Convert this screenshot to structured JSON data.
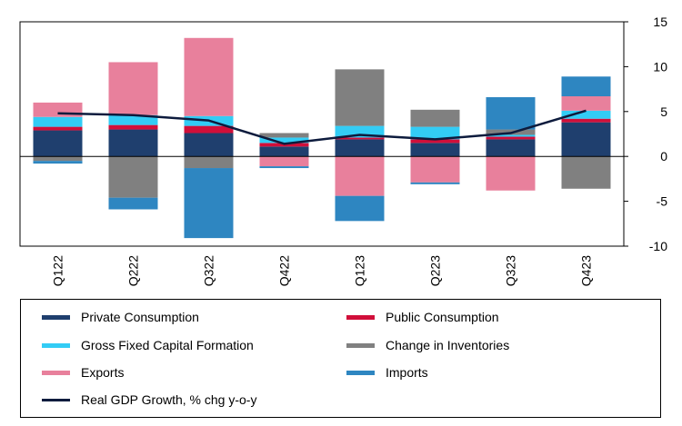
{
  "chart_data": {
    "type": "bar",
    "stacked": true,
    "categories": [
      "Q122",
      "Q222",
      "Q322",
      "Q422",
      "Q123",
      "Q223",
      "Q323",
      "Q423"
    ],
    "ylim": [
      -10,
      15
    ],
    "yticks": [
      -10,
      -5,
      0,
      5,
      10,
      15
    ],
    "grid": false,
    "legend_position": "bottom",
    "series": [
      {
        "name": "Private Consumption",
        "color": "#1f3f6e",
        "values": [
          2.9,
          3.0,
          2.6,
          1.1,
          1.9,
          1.5,
          1.9,
          3.8
        ]
      },
      {
        "name": "Public Consumption",
        "color": "#d10f3a",
        "values": [
          0.4,
          0.5,
          0.8,
          0.4,
          0.2,
          0.4,
          0.3,
          0.4
        ]
      },
      {
        "name": "Gross Fixed Capital Formation",
        "color": "#33ccf5",
        "values": [
          1.1,
          1.1,
          1.1,
          0.6,
          1.3,
          1.4,
          0.2,
          0.9
        ]
      },
      {
        "name": "Change in Inventories",
        "color": "#808080",
        "values": [
          -0.5,
          -4.6,
          -1.3,
          0.5,
          6.3,
          1.9,
          0.6,
          -3.6
        ]
      },
      {
        "name": "Exports",
        "color": "#e8809c",
        "values": [
          1.6,
          5.9,
          8.7,
          -1.1,
          -4.4,
          -2.9,
          -3.8,
          1.6
        ]
      },
      {
        "name": "Imports",
        "color": "#2e86c1",
        "values": [
          -0.3,
          -1.3,
          -7.8,
          -0.2,
          -2.8,
          -0.2,
          3.6,
          2.2
        ]
      }
    ],
    "line_series": {
      "name": "Real GDP Growth, % chg y-o-y",
      "color": "#0d1b3d",
      "values": [
        4.8,
        4.6,
        4.0,
        1.4,
        2.4,
        1.9,
        2.6,
        5.1
      ]
    }
  }
}
